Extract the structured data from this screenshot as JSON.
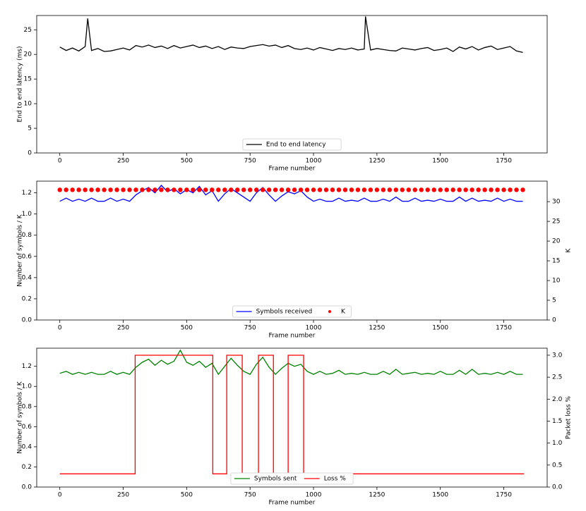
{
  "chart_data": [
    {
      "type": "line",
      "xlabel": "Frame number",
      "ylabel": "End to end latency (ms)",
      "x": [
        0,
        25,
        50,
        75,
        100,
        110,
        125,
        150,
        175,
        200,
        225,
        250,
        275,
        300,
        325,
        350,
        375,
        400,
        425,
        450,
        475,
        500,
        525,
        550,
        575,
        600,
        625,
        650,
        675,
        700,
        725,
        750,
        775,
        800,
        825,
        850,
        875,
        900,
        925,
        950,
        975,
        1000,
        1025,
        1050,
        1075,
        1100,
        1125,
        1150,
        1175,
        1200,
        1205,
        1225,
        1250,
        1275,
        1300,
        1325,
        1350,
        1375,
        1400,
        1425,
        1450,
        1475,
        1500,
        1525,
        1550,
        1575,
        1600,
        1625,
        1650,
        1675,
        1700,
        1725,
        1750,
        1775,
        1800,
        1825
      ],
      "series": [
        {
          "name": "End to end latency",
          "color": "#000000",
          "values": [
            21.5,
            20.8,
            21.3,
            20.7,
            21.6,
            27.3,
            20.8,
            21.2,
            20.6,
            20.7,
            21.0,
            21.3,
            20.9,
            21.8,
            21.5,
            21.9,
            21.4,
            21.7,
            21.2,
            21.8,
            21.3,
            21.6,
            21.9,
            21.4,
            21.7,
            21.2,
            21.6,
            21.0,
            21.5,
            21.3,
            21.2,
            21.6,
            21.8,
            22.0,
            21.7,
            21.9,
            21.4,
            21.8,
            21.2,
            21.0,
            21.3,
            20.9,
            21.4,
            21.1,
            20.8,
            21.2,
            21.0,
            21.3,
            20.9,
            21.1,
            27.7,
            20.9,
            21.2,
            21.0,
            20.8,
            20.7,
            21.3,
            21.1,
            20.9,
            21.2,
            21.4,
            20.8,
            21.0,
            21.3,
            20.6,
            21.5,
            21.1,
            21.6,
            20.9,
            21.4,
            21.7,
            21.0,
            21.3,
            21.6,
            20.7,
            20.4
          ]
        }
      ],
      "xlim": [
        -91,
        1921
      ],
      "xticks": [
        0,
        250,
        500,
        750,
        1000,
        1250,
        1500,
        1750
      ],
      "ylim": [
        0,
        27.9
      ],
      "yticks": [
        0,
        5,
        10,
        15,
        20,
        25
      ],
      "legend": "lower center"
    },
    {
      "type": "line",
      "xlabel": "Frame number",
      "ylabel": "Number of symbols / K",
      "y2label": "K",
      "x": [
        0,
        25,
        50,
        75,
        100,
        125,
        150,
        175,
        200,
        225,
        250,
        275,
        300,
        325,
        350,
        375,
        400,
        425,
        450,
        475,
        500,
        525,
        550,
        575,
        600,
        625,
        650,
        675,
        700,
        725,
        750,
        775,
        800,
        825,
        850,
        875,
        900,
        925,
        950,
        975,
        1000,
        1025,
        1050,
        1075,
        1100,
        1125,
        1150,
        1175,
        1200,
        1225,
        1250,
        1275,
        1300,
        1325,
        1350,
        1375,
        1400,
        1425,
        1450,
        1475,
        1500,
        1525,
        1550,
        1575,
        1600,
        1625,
        1650,
        1675,
        1700,
        1725,
        1750,
        1775,
        1800,
        1825
      ],
      "series": [
        {
          "name": "Symbols received",
          "color": "#0000ff",
          "values": [
            1.12,
            1.15,
            1.12,
            1.14,
            1.12,
            1.15,
            1.12,
            1.12,
            1.15,
            1.12,
            1.14,
            1.12,
            1.18,
            1.22,
            1.25,
            1.2,
            1.27,
            1.21,
            1.24,
            1.19,
            1.23,
            1.2,
            1.26,
            1.18,
            1.22,
            1.12,
            1.19,
            1.24,
            1.2,
            1.16,
            1.12,
            1.2,
            1.25,
            1.18,
            1.12,
            1.17,
            1.21,
            1.19,
            1.22,
            1.16,
            1.12,
            1.14,
            1.12,
            1.12,
            1.15,
            1.12,
            1.13,
            1.12,
            1.15,
            1.12,
            1.12,
            1.14,
            1.12,
            1.16,
            1.12,
            1.12,
            1.15,
            1.12,
            1.13,
            1.12,
            1.14,
            1.12,
            1.12,
            1.16,
            1.12,
            1.15,
            1.12,
            1.13,
            1.12,
            1.15,
            1.12,
            1.14,
            1.12,
            1.12
          ]
        },
        {
          "name": "K",
          "color": "#ff0000",
          "axis": "y2",
          "kind": "scatter",
          "values": [
            33,
            33,
            33,
            33,
            33,
            33,
            33,
            33,
            33,
            33,
            33,
            33,
            33,
            33,
            33,
            33,
            33,
            33,
            33,
            33,
            33,
            33,
            33,
            33,
            33,
            33,
            33,
            33,
            33,
            33,
            33,
            33,
            33,
            33,
            33,
            33,
            33,
            33,
            33,
            33,
            33,
            33,
            33,
            33,
            33,
            33,
            33,
            33,
            33,
            33,
            33,
            33,
            33,
            33,
            33,
            33,
            33,
            33,
            33,
            33,
            33,
            33,
            33,
            33,
            33,
            33,
            33,
            33,
            33,
            33,
            33,
            33,
            33,
            33
          ]
        }
      ],
      "xlim": [
        -91,
        1921
      ],
      "xticks": [
        0,
        250,
        500,
        750,
        1000,
        1250,
        1500,
        1750
      ],
      "ylim": [
        0,
        1.31
      ],
      "yticks": [
        {
          "value": 0,
          "label": "0.0"
        },
        0.2,
        0.4,
        0.6,
        0.8,
        {
          "value": 1,
          "label": "1.0"
        },
        1.2
      ],
      "y2lim": [
        0,
        35.2
      ],
      "y2ticks": [
        0,
        5,
        10,
        15,
        20,
        25,
        30
      ],
      "legend": "lower center"
    },
    {
      "type": "line",
      "xlabel": "Frame number",
      "ylabel": "Number of symbols / K",
      "y2label": "Packet loss %",
      "x": [
        0,
        25,
        50,
        75,
        100,
        125,
        150,
        175,
        200,
        225,
        250,
        275,
        300,
        325,
        350,
        375,
        400,
        425,
        450,
        475,
        500,
        525,
        550,
        575,
        600,
        625,
        650,
        675,
        700,
        725,
        750,
        775,
        800,
        825,
        850,
        875,
        900,
        925,
        950,
        975,
        1000,
        1025,
        1050,
        1075,
        1100,
        1125,
        1150,
        1175,
        1200,
        1225,
        1250,
        1275,
        1300,
        1325,
        1350,
        1375,
        1400,
        1425,
        1450,
        1475,
        1500,
        1525,
        1550,
        1575,
        1600,
        1625,
        1650,
        1675,
        1700,
        1725,
        1750,
        1775,
        1800,
        1825
      ],
      "series": [
        {
          "name": "Symbols sent",
          "color": "#008000",
          "values": [
            1.13,
            1.15,
            1.12,
            1.14,
            1.12,
            1.14,
            1.12,
            1.12,
            1.15,
            1.12,
            1.14,
            1.12,
            1.19,
            1.24,
            1.27,
            1.21,
            1.26,
            1.22,
            1.25,
            1.36,
            1.24,
            1.21,
            1.25,
            1.19,
            1.23,
            1.12,
            1.2,
            1.28,
            1.21,
            1.15,
            1.12,
            1.22,
            1.29,
            1.19,
            1.12,
            1.18,
            1.23,
            1.2,
            1.22,
            1.15,
            1.12,
            1.15,
            1.12,
            1.13,
            1.16,
            1.12,
            1.13,
            1.12,
            1.14,
            1.12,
            1.12,
            1.15,
            1.12,
            1.17,
            1.12,
            1.13,
            1.14,
            1.12,
            1.13,
            1.12,
            1.15,
            1.12,
            1.12,
            1.16,
            1.12,
            1.17,
            1.12,
            1.13,
            1.12,
            1.14,
            1.12,
            1.15,
            1.12,
            1.12
          ]
        },
        {
          "name": "Loss %",
          "color": "#ff0000",
          "axis": "y2",
          "x": [
            0,
            297,
            297,
            603,
            603,
            658,
            658,
            719,
            719,
            783,
            783,
            842,
            842,
            900,
            900,
            961,
            961,
            1830
          ],
          "values": [
            0.3,
            0.3,
            3.0,
            3.0,
            0.3,
            0.3,
            3.0,
            3.0,
            0.3,
            0.3,
            3.0,
            3.0,
            0.3,
            0.3,
            3.0,
            3.0,
            0.3,
            0.3
          ]
        }
      ],
      "xlim": [
        -91,
        1921
      ],
      "xticks": [
        0,
        250,
        500,
        750,
        1000,
        1250,
        1500,
        1750
      ],
      "ylim": [
        0,
        1.38
      ],
      "yticks": [
        {
          "value": 0,
          "label": "0.0"
        },
        0.2,
        0.4,
        0.6,
        0.8,
        {
          "value": 1,
          "label": "1.0"
        },
        1.2
      ],
      "y2lim": [
        0,
        3.16
      ],
      "y2ticks": [
        {
          "value": 0,
          "label": "0.0"
        },
        0.5,
        {
          "value": 1,
          "label": "1.0"
        },
        1.5,
        {
          "value": 2,
          "label": "2.0"
        },
        2.5,
        {
          "value": 3,
          "label": "3.0"
        }
      ],
      "legend": "lower center"
    }
  ]
}
